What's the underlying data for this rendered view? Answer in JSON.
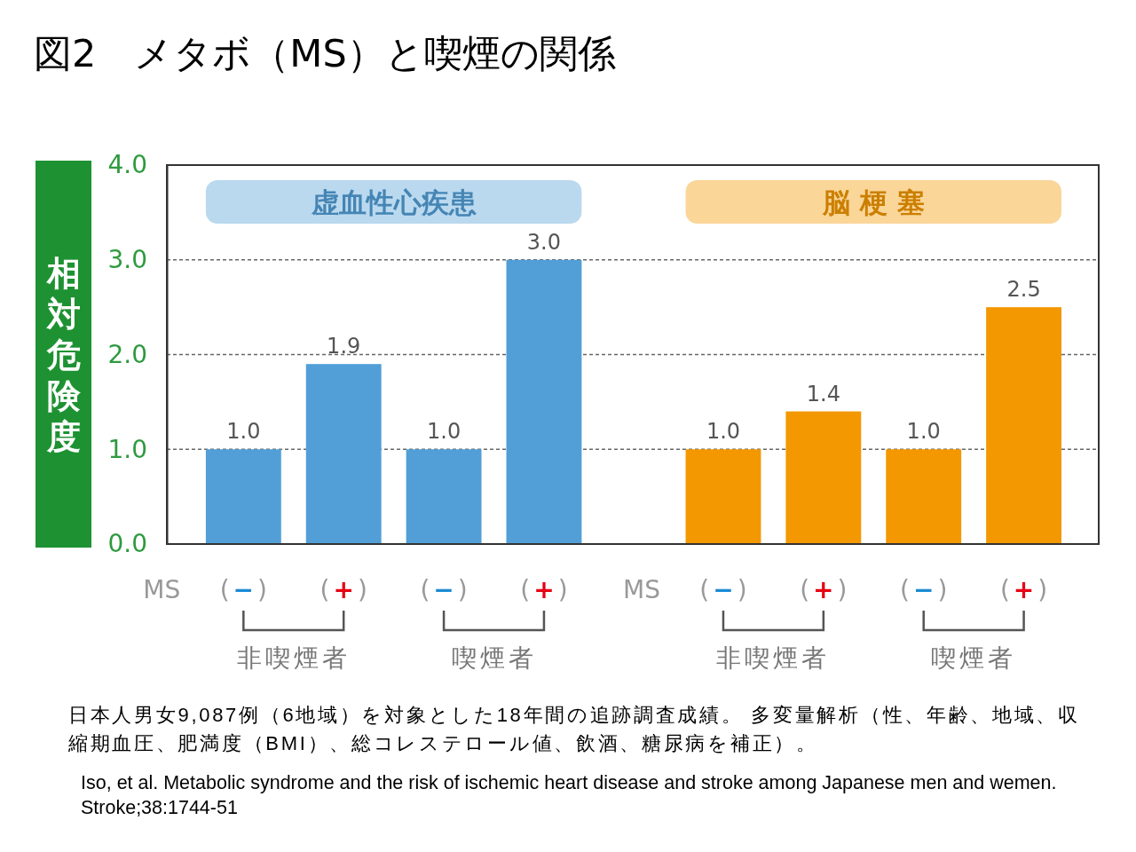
{
  "chart_data": {
    "type": "bar",
    "title": "図2　メタボ（MS）と喫煙の関係",
    "ylabel": "相対危険度",
    "categories": [
      "(−)",
      "(+)",
      "(−)",
      "(+)",
      "(−)",
      "(+)",
      "(−)",
      "(+)"
    ],
    "series": [
      {
        "name": "虚血性心疾患",
        "color": "#529fd7",
        "values": [
          1.0,
          1.9,
          1.0,
          3.0,
          null,
          null,
          null,
          null
        ],
        "value_labels": [
          "1.0",
          "1.9",
          "1.0",
          "3.0",
          null,
          null,
          null,
          null
        ]
      },
      {
        "name": "脳 梗 塞",
        "color": "#f39800",
        "values": [
          null,
          null,
          null,
          null,
          1.0,
          1.4,
          1.0,
          2.5
        ],
        "value_labels": [
          null,
          null,
          null,
          null,
          "1.0",
          "1.4",
          "1.0",
          "2.5"
        ]
      }
    ],
    "ylim": [
      0,
      4
    ],
    "yticks": [
      {
        "value": 0,
        "label": "0.0"
      },
      {
        "value": 1,
        "label": "1.0"
      },
      {
        "value": 2,
        "label": "2.0"
      },
      {
        "value": 3,
        "label": "3.0"
      },
      {
        "value": 4,
        "label": "4.0"
      }
    ],
    "grid": "y",
    "annotations": [
      "MS",
      "MS",
      "非喫煙者",
      "喫煙者",
      "非喫煙者",
      "喫煙者",
      "日本人男女9,087例（6地域）を対象とした18年間の追跡調査成績。 多変量解析（性、年齢、地域、収縮期血圧、肥満度（BMI）、総コレステロール値、飲酒、糖尿病を補正）。",
      "Iso, et al. Metabolic syndrome and the risk of ischemic heart disease and stroke among Japanese men and wemen. Stroke;38:1744-51"
    ]
  }
}
